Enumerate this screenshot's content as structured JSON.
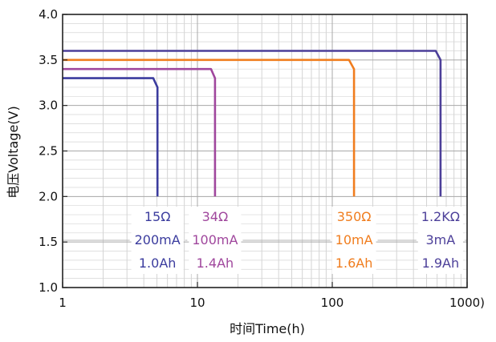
{
  "chart_data": {
    "type": "line",
    "xlabel": "时间Time(h)",
    "ylabel": "电压Voltage(V)",
    "xscale": "log",
    "xlim": [
      1,
      1000
    ],
    "ylim": [
      1.0,
      4.0
    ],
    "grid": true,
    "x_ticks": [
      {
        "value": 1,
        "label": "1"
      },
      {
        "value": 10,
        "label": "10"
      },
      {
        "value": 100,
        "label": "100"
      },
      {
        "value": 1000,
        "label": "1000)"
      }
    ],
    "y_ticks": [
      {
        "value": 1.0,
        "label": "1.0"
      },
      {
        "value": 1.5,
        "label": "1.5"
      },
      {
        "value": 2.0,
        "label": "2.0"
      },
      {
        "value": 2.5,
        "label": "2.5"
      },
      {
        "value": 3.0,
        "label": "3.0"
      },
      {
        "value": 3.5,
        "label": "3.5"
      },
      {
        "value": 4.0,
        "label": "4.0"
      }
    ],
    "series": [
      {
        "color": "#3b3c9e",
        "points": [
          [
            1,
            3.3
          ],
          [
            4.7,
            3.3
          ],
          [
            5.05,
            3.2
          ],
          [
            5.05,
            2.0
          ]
        ],
        "annotation": {
          "resistance": "15Ω",
          "current": "200mA",
          "capacity": "1.0Ah"
        }
      },
      {
        "color": "#a0479d",
        "points": [
          [
            1,
            3.4
          ],
          [
            12.6,
            3.4
          ],
          [
            13.5,
            3.3
          ],
          [
            13.5,
            2.0
          ]
        ],
        "annotation": {
          "resistance": "34Ω",
          "current": "100mA",
          "capacity": "1.4Ah"
        }
      },
      {
        "color": "#f07d1e",
        "points": [
          [
            1,
            3.5
          ],
          [
            133,
            3.5
          ],
          [
            145,
            3.4
          ],
          [
            145,
            2.0
          ]
        ],
        "annotation": {
          "resistance": "350Ω",
          "current": "10mA",
          "capacity": "1.6Ah"
        }
      },
      {
        "color": "#4c3f99",
        "points": [
          [
            1,
            3.6
          ],
          [
            585,
            3.6
          ],
          [
            635,
            3.5
          ],
          [
            635,
            2.0
          ]
        ],
        "annotation": {
          "resistance": "1.2KΩ",
          "current": "3mA",
          "capacity": "1.9Ah"
        }
      }
    ]
  }
}
